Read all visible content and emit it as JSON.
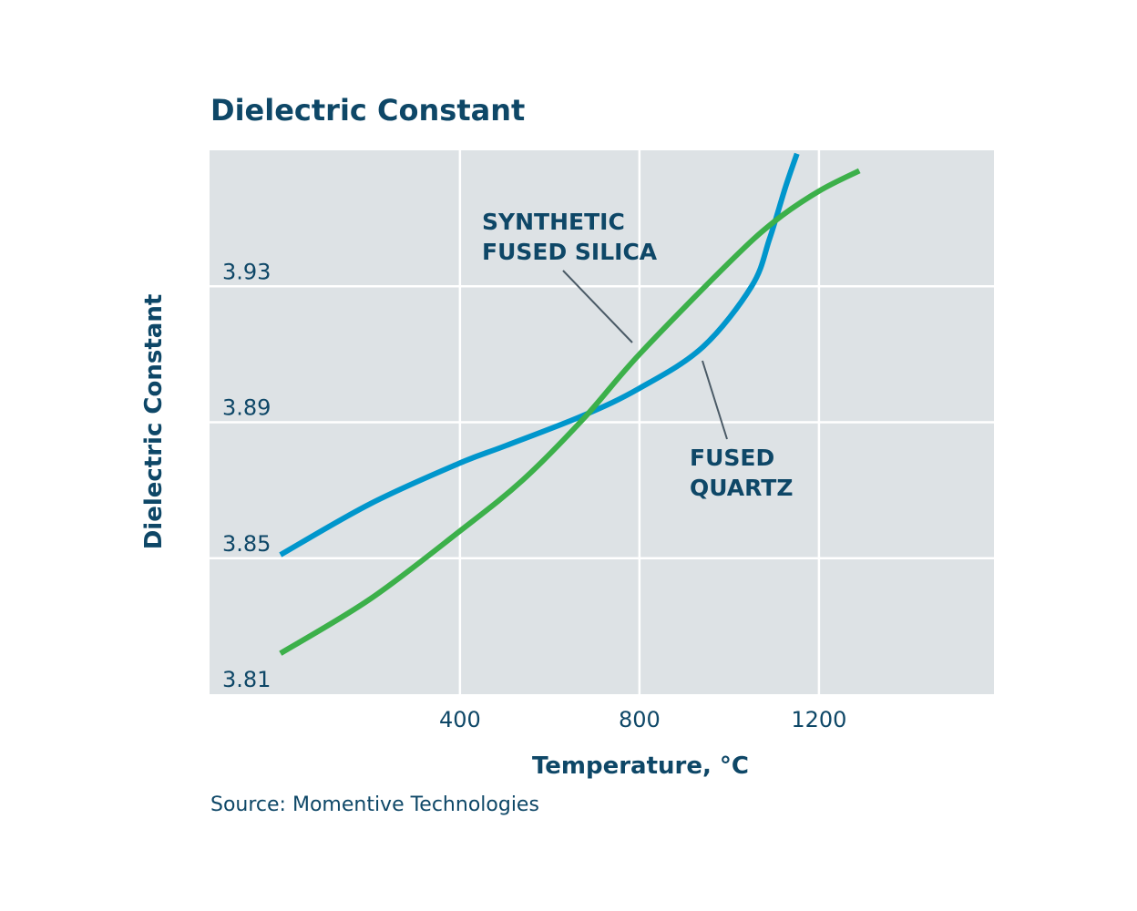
{
  "chart_data": {
    "type": "line",
    "title": "Dielectric Constant",
    "xlabel": "Temperature, °C",
    "ylabel": "Dielectric Constant",
    "xlim": [
      -158,
      1590
    ],
    "ylim": [
      3.81,
      3.97
    ],
    "xticks": [
      400,
      800,
      1200
    ],
    "xtick_labels": [
      "400",
      "800",
      "1200"
    ],
    "yticks": [
      3.81,
      3.85,
      3.89,
      3.93
    ],
    "ytick_labels": [
      "3.81",
      "3.85",
      "3.89",
      "3.93"
    ],
    "grid": true,
    "background": "#dde2e5",
    "series": [
      {
        "name": "FUSED QUARTZ",
        "color": "#0096cc",
        "x": [
          0,
          200,
          400,
          500,
          675,
          800,
          940,
          1050,
          1090,
          1125,
          1151
        ],
        "y": [
          3.851,
          3.866,
          3.878,
          3.883,
          3.892,
          3.9,
          3.912,
          3.93,
          3.944,
          3.959,
          3.969
        ]
      },
      {
        "name": "SYNTHETIC FUSED SILICA",
        "color": "#3cb04a",
        "x": [
          0,
          200,
          400,
          540,
          675,
          800,
          1000,
          1100,
          1200,
          1290
        ],
        "y": [
          3.822,
          3.838,
          3.858,
          3.873,
          3.891,
          3.91,
          3.937,
          3.949,
          3.958,
          3.964
        ]
      }
    ],
    "annotations": [
      {
        "lines": [
          "SYNTHETIC",
          "FUSED SILICA"
        ],
        "series": "SYNTHETIC FUSED SILICA"
      },
      {
        "lines": [
          "FUSED",
          "QUARTZ"
        ],
        "series": "FUSED QUARTZ"
      }
    ],
    "source": "Source: Momentive Technologies"
  }
}
